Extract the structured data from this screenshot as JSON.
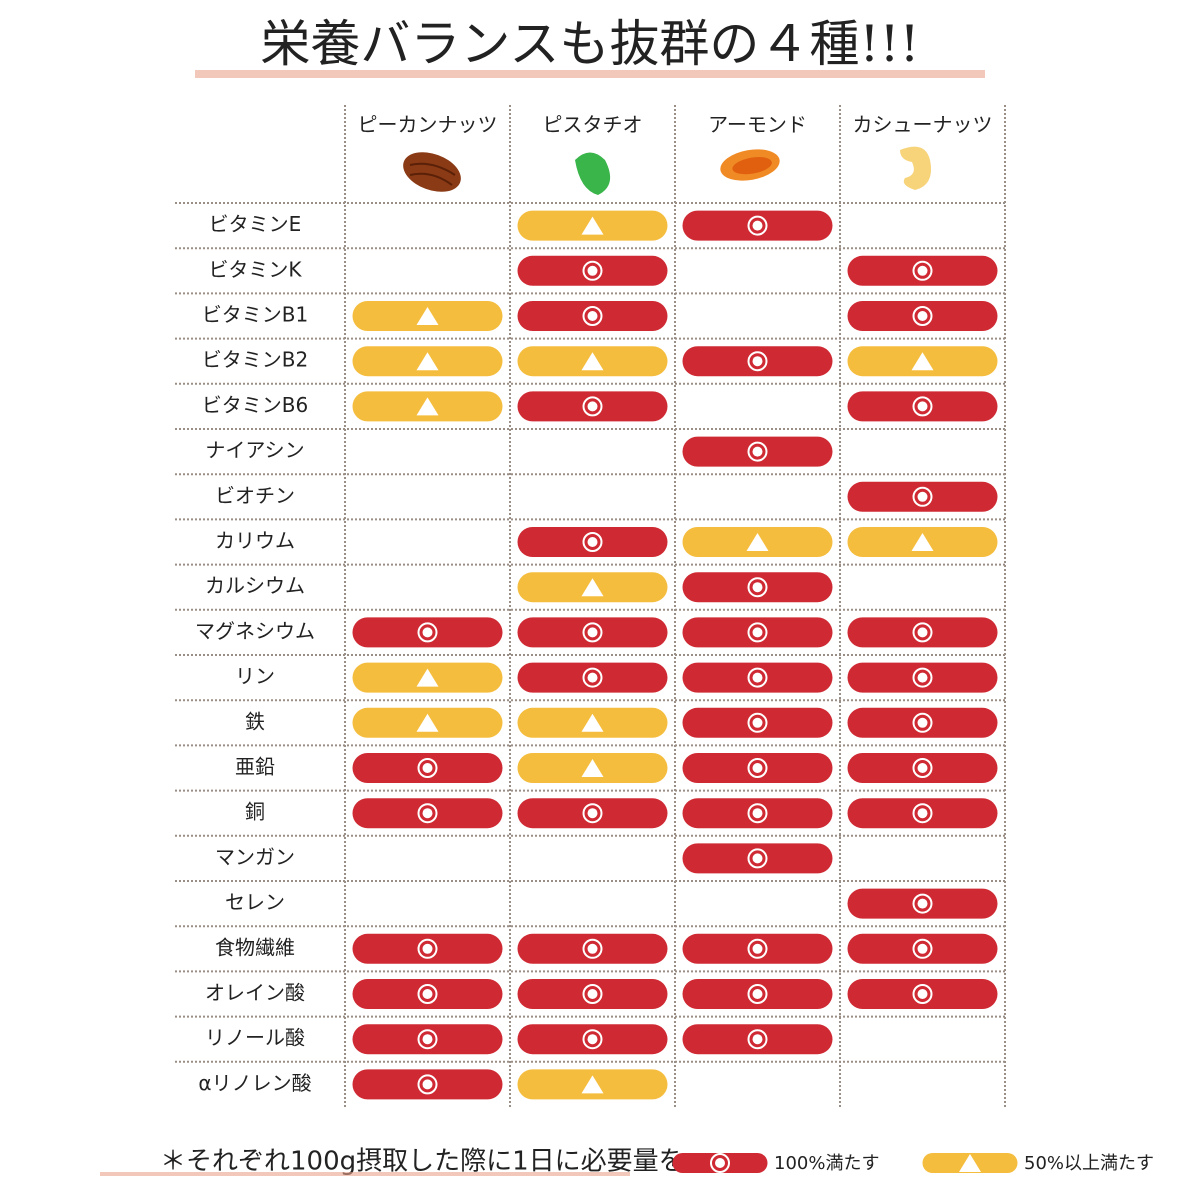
{
  "title": "栄養バランスも抜群の４種!!!",
  "table": {
    "columns": [
      "ピーカンナッツ",
      "ピスタチオ",
      "アーモンド",
      "カシューナッツ"
    ],
    "rows": [
      {
        "label": "ビタミンE",
        "cells": [
          null,
          50,
          100,
          null
        ]
      },
      {
        "label": "ビタミンK",
        "cells": [
          null,
          100,
          null,
          100
        ]
      },
      {
        "label": "ビタミンB1",
        "cells": [
          50,
          100,
          null,
          100
        ]
      },
      {
        "label": "ビタミンB2",
        "cells": [
          50,
          50,
          100,
          50
        ]
      },
      {
        "label": "ビタミンB6",
        "cells": [
          50,
          100,
          null,
          100
        ]
      },
      {
        "label": "ナイアシン",
        "cells": [
          null,
          null,
          100,
          null
        ]
      },
      {
        "label": "ビオチン",
        "cells": [
          null,
          null,
          null,
          100
        ]
      },
      {
        "label": "カリウム",
        "cells": [
          null,
          100,
          50,
          50
        ]
      },
      {
        "label": "カルシウム",
        "cells": [
          null,
          50,
          100,
          null
        ]
      },
      {
        "label": "マグネシウム",
        "cells": [
          100,
          100,
          100,
          100
        ]
      },
      {
        "label": "リン",
        "cells": [
          50,
          100,
          100,
          100
        ]
      },
      {
        "label": "鉄",
        "cells": [
          50,
          50,
          100,
          100
        ]
      },
      {
        "label": "亜鉛",
        "cells": [
          100,
          50,
          100,
          100
        ]
      },
      {
        "label": "銅",
        "cells": [
          100,
          100,
          100,
          100
        ]
      },
      {
        "label": "マンガン",
        "cells": [
          null,
          null,
          100,
          null
        ]
      },
      {
        "label": "セレン",
        "cells": [
          null,
          null,
          null,
          100
        ]
      },
      {
        "label": "食物繊維",
        "cells": [
          100,
          100,
          100,
          100
        ]
      },
      {
        "label": "オレイン酸",
        "cells": [
          100,
          100,
          100,
          100
        ]
      },
      {
        "label": "リノール酸",
        "cells": [
          100,
          100,
          100,
          null
        ]
      },
      {
        "label": "αリノレン酸",
        "cells": [
          100,
          50,
          null,
          null
        ]
      }
    ]
  },
  "legend": [
    {
      "label": "100%満たす",
      "value": 100,
      "color": "#cf2a33"
    },
    {
      "label": "50%以上満たす",
      "value": 50,
      "color": "#f5bd3e"
    }
  ],
  "footnote": "＊それぞれ100g摂取した際に1日に必要量を"
}
